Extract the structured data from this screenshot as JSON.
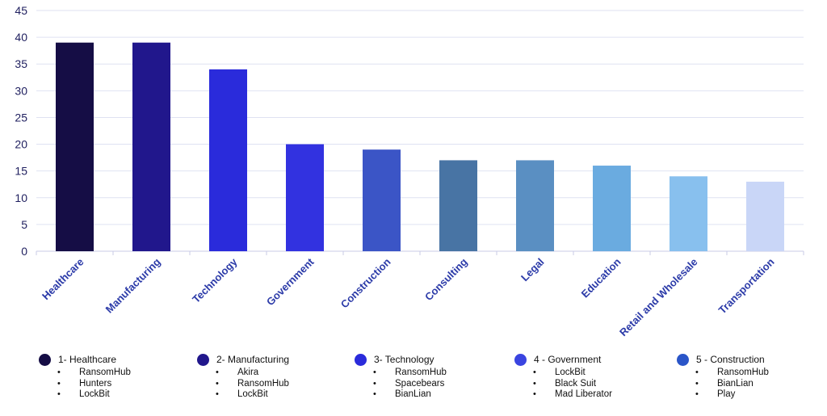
{
  "chart_data": {
    "type": "bar",
    "categories": [
      "Healthcare",
      "Manufacturing",
      "Technology",
      "Government",
      "Construction",
      "Consulting",
      "Legal",
      "Education",
      "Retail and Wholesale",
      "Transportation"
    ],
    "values": [
      39,
      39,
      34,
      20,
      19,
      17,
      17,
      16,
      14,
      13
    ],
    "bar_colors": [
      "#150d45",
      "#21178c",
      "#2a2bdb",
      "#3232e0",
      "#3b55c6",
      "#4874a4",
      "#5a8fc2",
      "#6aabe0",
      "#88c0ee",
      "#c9d6f7"
    ],
    "yticks": [
      "0",
      "5",
      "10",
      "15",
      "20",
      "25",
      "30",
      "35",
      "40",
      "45"
    ],
    "ylim": [
      0,
      45
    ],
    "grid": true,
    "title": "",
    "xlabel": "",
    "ylabel": ""
  },
  "legend_groups": [
    {
      "title": "1- Healthcare",
      "color": "#150d45",
      "items": [
        "RansomHub",
        "Hunters",
        "LockBit"
      ]
    },
    {
      "title": "2- Manufacturing",
      "color": "#21178c",
      "items": [
        "Akira",
        "RansomHub",
        "LockBit"
      ]
    },
    {
      "title": "3- Technology",
      "color": "#2a2bdb",
      "items": [
        "RansomHub",
        "Spacebears",
        "BianLian"
      ]
    },
    {
      "title": "4 - Government",
      "color": "#3a44e0",
      "items": [
        "LockBit",
        "Black Suit",
        "Mad Liberator"
      ]
    },
    {
      "title": "5 - Construction",
      "color": "#2a55c8",
      "items": [
        "RansomHub",
        "BianLian",
        "Play"
      ]
    }
  ]
}
